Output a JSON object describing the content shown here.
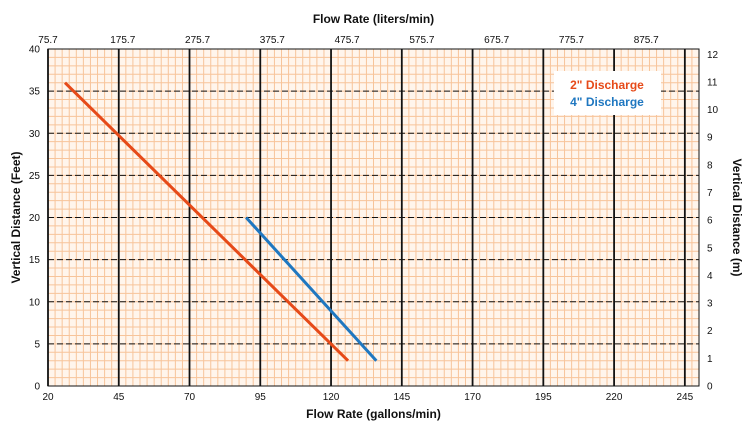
{
  "chart_data": {
    "type": "line",
    "title": "",
    "xlabel": "Flow Rate (gallons/min)",
    "x2label": "Flow Rate (liters/min)",
    "ylabel": "Vertical Distance (Feet)",
    "y2label": "Vertical Distance (m)",
    "xlim": [
      20,
      250
    ],
    "ylim": [
      0,
      40
    ],
    "x2lim": [
      75.7,
      946.3
    ],
    "y2lim": [
      0,
      12.19
    ],
    "x_ticks": [
      20,
      45,
      70,
      95,
      120,
      145,
      170,
      195,
      220,
      245
    ],
    "x2_ticks": [
      "75.7",
      "175.7",
      "275.7",
      "375.7",
      "475.7",
      "575.7",
      "675.7",
      "775.7",
      "875.7"
    ],
    "y_ticks": [
      0,
      5,
      10,
      15,
      20,
      25,
      30,
      35,
      40
    ],
    "y2_ticks": [
      0,
      1,
      2,
      3,
      4,
      5,
      6,
      7,
      8,
      9,
      10,
      11,
      12
    ],
    "grid": "on",
    "legend_position": "top-right",
    "colors": {
      "minor_grid": "#f7c49a",
      "major_grid": "#111111",
      "background": "#fff5ec"
    },
    "series": [
      {
        "name": "2\" Discharge",
        "color": "#e64a19",
        "x": [
          26,
          126
        ],
        "y": [
          36,
          3
        ]
      },
      {
        "name": "4\" Discharge",
        "color": "#1f77c0",
        "x": [
          90,
          136
        ],
        "y": [
          20,
          3
        ]
      }
    ]
  }
}
